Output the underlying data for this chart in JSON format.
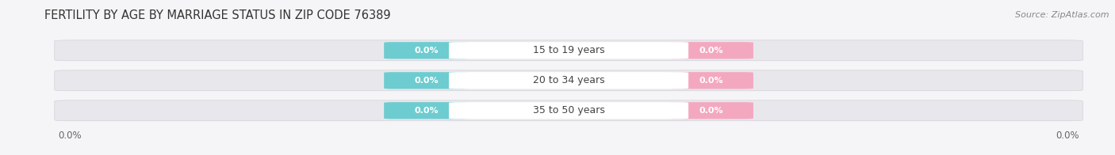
{
  "title": "FERTILITY BY AGE BY MARRIAGE STATUS IN ZIP CODE 76389",
  "source_text": "Source: ZipAtlas.com",
  "categories": [
    "15 to 19 years",
    "20 to 34 years",
    "35 to 50 years"
  ],
  "married_values": [
    0.0,
    0.0,
    0.0
  ],
  "unmarried_values": [
    0.0,
    0.0,
    0.0
  ],
  "married_color": "#6dccd0",
  "unmarried_color": "#f4a8c0",
  "bar_bg_color": "#e8e8ec",
  "center_label_color": "#ffffff",
  "title_fontsize": 10.5,
  "source_fontsize": 8,
  "value_fontsize": 8,
  "category_fontsize": 9,
  "tick_fontsize": 8.5,
  "legend_fontsize": 9,
  "background_color": "#f5f5f8",
  "x_tick_left": "0.0%",
  "x_tick_right": "0.0%"
}
